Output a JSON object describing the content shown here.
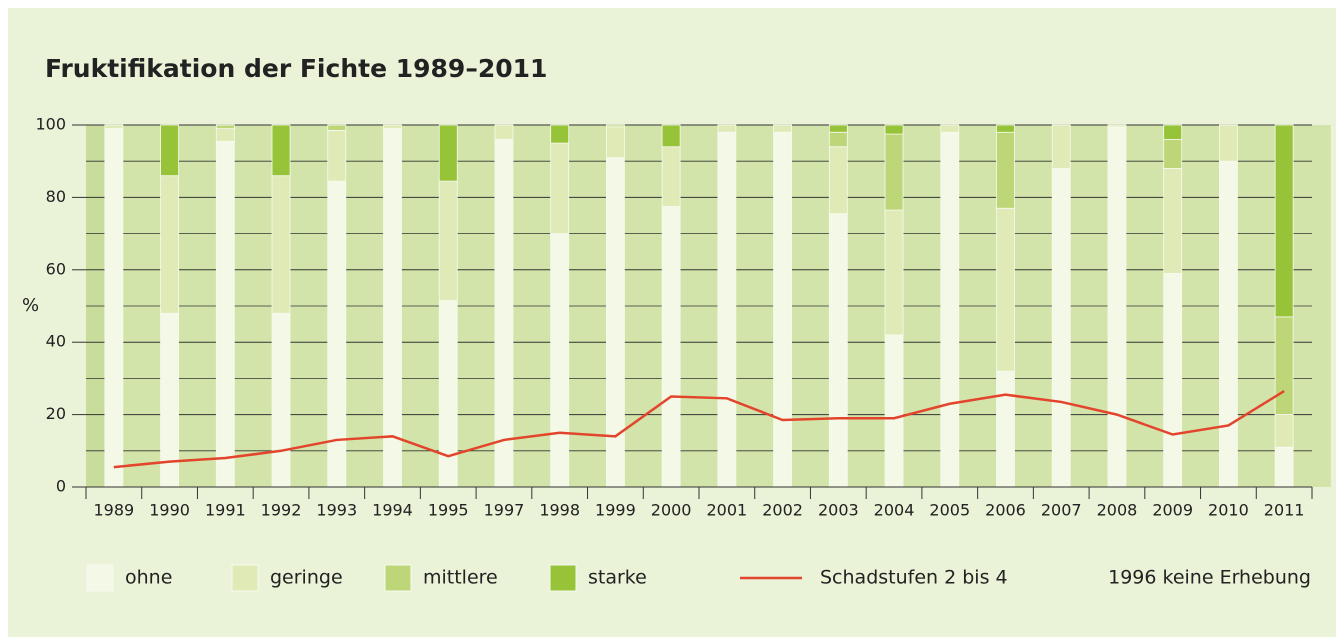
{
  "chart_data": {
    "type": "bar",
    "stacked": true,
    "title": "Fruktifikation der Fichte 1989–2011",
    "ylabel": "%",
    "categories": [
      "1989",
      "1990",
      "1991",
      "1992",
      "1993",
      "1994",
      "1995",
      "1997",
      "1998",
      "1999",
      "2000",
      "2001",
      "2002",
      "2003",
      "2004",
      "2005",
      "2006",
      "2007",
      "2008",
      "2009",
      "2010",
      "2011"
    ],
    "series": [
      {
        "name": "ohne",
        "color": "#f4f8e6",
        "values": [
          99,
          48,
          95.5,
          48,
          84.5,
          99,
          51.5,
          96,
          70,
          91,
          77.5,
          98,
          98,
          75.5,
          42,
          98,
          32,
          88,
          99.5,
          59,
          90,
          11
        ]
      },
      {
        "name": "geringe",
        "color": "#dfeab6",
        "values": [
          1,
          38,
          3.5,
          38,
          14,
          1,
          33,
          4,
          25,
          8.5,
          16.5,
          2,
          2,
          18.5,
          34.5,
          2,
          45,
          12,
          0.5,
          29,
          10,
          9
        ]
      },
      {
        "name": "mittlere",
        "color": "#bdd778",
        "values": [
          0,
          0,
          1,
          0,
          1.5,
          0,
          0,
          0,
          0,
          0.5,
          0,
          0,
          0,
          4,
          21,
          0,
          21,
          0,
          0,
          8,
          0,
          27
        ]
      },
      {
        "name": "starke",
        "color": "#96c337",
        "values": [
          0,
          14,
          0,
          14,
          0,
          0,
          15.5,
          0,
          5,
          0,
          6,
          0,
          0,
          2,
          2.5,
          0,
          2,
          0,
          0,
          4,
          0,
          53
        ]
      },
      {
        "name": "Schadstufen 2 bis 4",
        "type": "line",
        "color": "#e2452c",
        "values": [
          5.5,
          7,
          8,
          10,
          13,
          14,
          8.5,
          13,
          15,
          14,
          25,
          24.5,
          18.5,
          19,
          19,
          23,
          25.5,
          23.5,
          20,
          14.5,
          17,
          26.5
        ]
      }
    ],
    "annotation": "1996 keine Erhebung",
    "ylim": [
      0,
      100
    ],
    "yticks": [
      0,
      20,
      40,
      60,
      80,
      100
    ],
    "yminor": [
      10,
      30,
      50,
      70,
      90
    ],
    "grid": true
  }
}
